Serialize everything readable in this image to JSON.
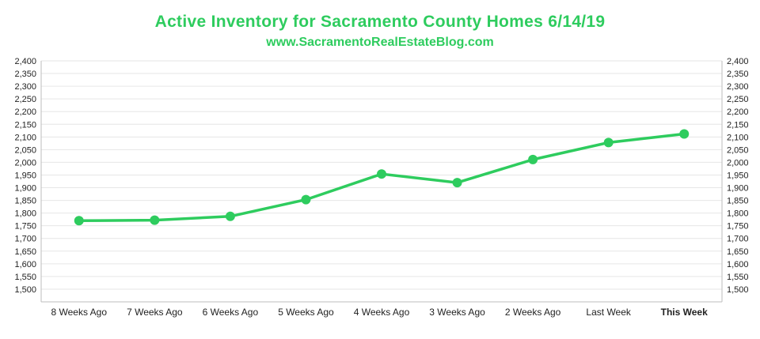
{
  "colors": {
    "accent": "#2ecc5e",
    "grid": "#e6e6e6",
    "axis": "#bdbdbd",
    "text": "#222222"
  },
  "chart_data": {
    "type": "line",
    "title": "Active Inventory for Sacramento County Homes 6/14/19",
    "subtitle": "www.SacramentoRealEstateBlog.com",
    "categories": [
      "8 Weeks Ago",
      "7 Weeks Ago",
      "6 Weeks Ago",
      "5 Weeks Ago",
      "4 Weeks Ago",
      "3 Weeks Ago",
      "2 Weeks Ago",
      "Last Week",
      "This Week"
    ],
    "highlight_category": "This Week",
    "series": [
      {
        "values": [
          1770,
          1772,
          1787,
          1853,
          1954,
          1920,
          2011,
          2078,
          2112
        ]
      }
    ],
    "ylim": [
      1450,
      2400
    ],
    "yticks": [
      1500,
      1550,
      1600,
      1650,
      1700,
      1750,
      1800,
      1850,
      1900,
      1950,
      2000,
      2050,
      2100,
      2150,
      2200,
      2250,
      2300,
      2350,
      2400
    ],
    "ytick_labels": [
      "1,500",
      "1,550",
      "1,600",
      "1,650",
      "1,700",
      "1,750",
      "1,800",
      "1,850",
      "1,900",
      "1,950",
      "2,000",
      "2,050",
      "2,100",
      "2,150",
      "2,200",
      "2,250",
      "2,300",
      "2,350",
      "2,400"
    ],
    "secondary_y_axis": true,
    "grid": true,
    "xlabel": "",
    "ylabel": ""
  }
}
